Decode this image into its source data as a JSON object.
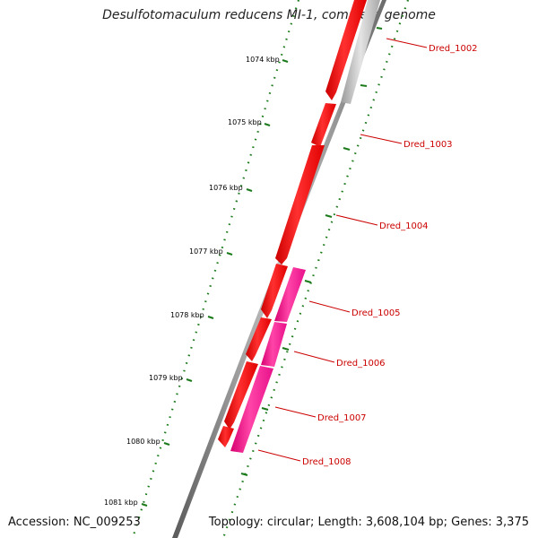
{
  "title": "Desulfotomaculum reducens MI-1, complete genome",
  "accession": "Accession: NC_009253",
  "summary": "Topology: circular; Length: 3,608,104 bp; Genes: 3,375",
  "scale_labels": [
    "1074 kbp",
    "1075 kbp",
    "1076 kbp",
    "1077 kbp",
    "1078 kbp",
    "1079 kbp",
    "1080 kbp",
    "1081 kbp"
  ],
  "gene_labels": [
    "Dred_1002",
    "Dred_1003",
    "Dred_1004",
    "Dred_1005",
    "Dred_1006",
    "Dred_1007",
    "Dred_1008"
  ],
  "colors": {
    "forward_cds": "#ff0000",
    "reverse_cds": "#ff1493",
    "other_feature": "#b0b0b0",
    "backbone": "#808080",
    "tick_marks": "#006400",
    "label_text": "#cc0000"
  }
}
